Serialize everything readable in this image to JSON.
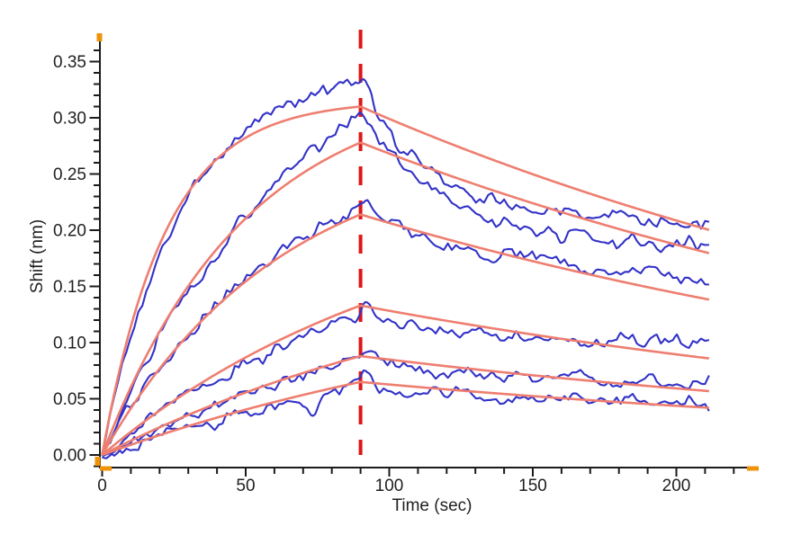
{
  "chart_data": {
    "type": "line",
    "title": "",
    "xlabel": "Time (sec)",
    "ylabel": "Shift (nm)",
    "xlim": [
      -1,
      226
    ],
    "ylim": [
      -0.013,
      0.372
    ],
    "x_ticks": [
      0,
      50,
      100,
      150,
      200
    ],
    "x_minor_step": 10,
    "x_minor_max": 220,
    "y_ticks": [
      0.0,
      0.05,
      0.1,
      0.15,
      0.2,
      0.25,
      0.3,
      0.35
    ],
    "y_minor_step": 0.01,
    "y_minor_min": -0.01,
    "y_minor_max": 0.36,
    "grid": false,
    "legend": false,
    "association_end_sec": 90,
    "run_end_sec": 212,
    "marker_line": {
      "x": 90,
      "style": "dashed",
      "color": "#e01616"
    },
    "colors": {
      "data": "#3232c8",
      "fit": "#ee7e70",
      "axis": "#1b1b1b",
      "axis_end_marks": "#ef9309"
    },
    "series": [
      {
        "name": "trace-1-data",
        "role": "measured",
        "color": "#3232c8",
        "peak_nm": 0.33,
        "end_nm": 0.208,
        "k_obs": 0.038,
        "diss_fast_k": 0.04,
        "spike_nm": 0.015,
        "noise_nm": 0.0055,
        "seed": 12,
        "sample_t": [
          0,
          15,
          30,
          45,
          60,
          75,
          90,
          120,
          150,
          180,
          210
        ],
        "sample_y": [
          0,
          0.148,
          0.232,
          0.28,
          0.306,
          0.322,
          0.33,
          0.243,
          0.217,
          0.21,
          0.208
        ]
      },
      {
        "name": "trace-1-fit",
        "role": "fit",
        "color": "#ee7e70",
        "peak_nm": 0.31,
        "end_nm": 0.2,
        "k_obs": 0.045,
        "k_diss": 0.0036,
        "sample_t": [
          0,
          15,
          30,
          45,
          60,
          75,
          90,
          120,
          150,
          180,
          210
        ],
        "sample_y": [
          0,
          0.155,
          0.234,
          0.274,
          0.294,
          0.305,
          0.31,
          0.278,
          0.25,
          0.224,
          0.201
        ]
      },
      {
        "name": "trace-2-data",
        "role": "measured",
        "color": "#3232c8",
        "peak_nm": 0.301,
        "end_nm": 0.186,
        "k_obs": 0.015,
        "diss_fast_k": 0.035,
        "spike_nm": 0.01,
        "noise_nm": 0.0055,
        "seed": 9,
        "sample_t": [
          0,
          15,
          30,
          45,
          60,
          75,
          90,
          120,
          150,
          180,
          210
        ],
        "sample_y": [
          0,
          0.081,
          0.146,
          0.198,
          0.24,
          0.273,
          0.301,
          0.225,
          0.198,
          0.189,
          0.186
        ]
      },
      {
        "name": "trace-2-fit",
        "role": "fit",
        "color": "#ee7e70",
        "peak_nm": 0.278,
        "end_nm": 0.18,
        "k_obs": 0.02,
        "k_diss": 0.0036,
        "sample_t": [
          0,
          15,
          30,
          45,
          60,
          75,
          90,
          120,
          150,
          180,
          210
        ],
        "sample_y": [
          0,
          0.086,
          0.15,
          0.198,
          0.233,
          0.259,
          0.278,
          0.25,
          0.224,
          0.201,
          0.181
        ]
      },
      {
        "name": "trace-3-data",
        "role": "measured",
        "color": "#3232c8",
        "peak_nm": 0.218,
        "end_nm": 0.157,
        "k_obs": 0.016,
        "diss_fast_k": 0.02,
        "spike_nm": 0.011,
        "noise_nm": 0.0055,
        "seed": 3,
        "sample_t": [
          0,
          15,
          30,
          45,
          60,
          75,
          90,
          120,
          150,
          180,
          210
        ],
        "sample_y": [
          0,
          0.061,
          0.109,
          0.147,
          0.176,
          0.2,
          0.218,
          0.188,
          0.171,
          0.162,
          0.157
        ]
      },
      {
        "name": "trace-3-fit",
        "role": "fit",
        "color": "#ee7e70",
        "peak_nm": 0.214,
        "end_nm": 0.138,
        "k_obs": 0.016,
        "k_diss": 0.0036,
        "sample_t": [
          0,
          15,
          30,
          45,
          60,
          75,
          90,
          120,
          150,
          180,
          210
        ],
        "sample_y": [
          0,
          0.06,
          0.107,
          0.144,
          0.173,
          0.196,
          0.214,
          0.192,
          0.172,
          0.155,
          0.139
        ]
      },
      {
        "name": "trace-4-data",
        "role": "measured",
        "color": "#3232c8",
        "peak_nm": 0.126,
        "end_nm": 0.099,
        "k_obs": 0.009,
        "diss_fast_k": 0.02,
        "spike_nm": 0.013,
        "noise_nm": 0.0052,
        "seed": 14,
        "sample_t": [
          0,
          15,
          30,
          45,
          60,
          75,
          90,
          120,
          150,
          180,
          210
        ],
        "sample_y": [
          0,
          0.029,
          0.054,
          0.076,
          0.095,
          0.111,
          0.126,
          0.113,
          0.105,
          0.101,
          0.099
        ]
      },
      {
        "name": "trace-4-fit",
        "role": "fit",
        "color": "#ee7e70",
        "peak_nm": 0.133,
        "end_nm": 0.086,
        "k_obs": 0.009,
        "k_diss": 0.0036,
        "sample_t": [
          0,
          15,
          30,
          45,
          60,
          75,
          90,
          120,
          150,
          180,
          210
        ],
        "sample_y": [
          0,
          0.03,
          0.057,
          0.08,
          0.1,
          0.118,
          0.133,
          0.119,
          0.107,
          0.096,
          0.086
        ]
      },
      {
        "name": "trace-5-data",
        "role": "measured",
        "color": "#3232c8",
        "peak_nm": 0.086,
        "end_nm": 0.065,
        "k_obs": 0.007,
        "diss_fast_k": 0.02,
        "spike_nm": 0.009,
        "noise_nm": 0.0052,
        "seed": 21,
        "sample_t": [
          0,
          15,
          30,
          45,
          60,
          75,
          90,
          120,
          150,
          180,
          210
        ],
        "sample_y": [
          0,
          0.018,
          0.035,
          0.05,
          0.063,
          0.075,
          0.086,
          0.076,
          0.07,
          0.067,
          0.065
        ]
      },
      {
        "name": "trace-5-fit",
        "role": "fit",
        "color": "#ee7e70",
        "peak_nm": 0.088,
        "end_nm": 0.057,
        "k_obs": 0.007,
        "k_diss": 0.0036,
        "sample_t": [
          0,
          15,
          30,
          45,
          60,
          75,
          90,
          120,
          150,
          180,
          210
        ],
        "sample_y": [
          0,
          0.019,
          0.036,
          0.051,
          0.065,
          0.077,
          0.088,
          0.079,
          0.071,
          0.064,
          0.057
        ]
      },
      {
        "name": "trace-6-data",
        "role": "measured",
        "color": "#3232c8",
        "peak_nm": 0.063,
        "end_nm": 0.046,
        "k_obs": 0.006,
        "diss_fast_k": 0.02,
        "spike_nm": 0.013,
        "noise_nm": 0.0052,
        "seed": 8,
        "dip_t": 74,
        "dip_nm": 0.015,
        "sample_t": [
          0,
          15,
          30,
          45,
          60,
          75,
          90,
          120,
          150,
          180,
          210
        ],
        "sample_y": [
          0,
          0.013,
          0.025,
          0.036,
          0.046,
          0.055,
          0.063,
          0.055,
          0.05,
          0.048,
          0.046
        ]
      },
      {
        "name": "trace-6-fit",
        "role": "fit",
        "color": "#ee7e70",
        "peak_nm": 0.065,
        "end_nm": 0.042,
        "k_obs": 0.006,
        "k_diss": 0.0036,
        "sample_t": [
          0,
          15,
          30,
          45,
          60,
          75,
          90,
          120,
          150,
          180,
          210
        ],
        "sample_y": [
          0,
          0.013,
          0.026,
          0.037,
          0.047,
          0.056,
          0.065,
          0.058,
          0.052,
          0.047,
          0.042
        ]
      }
    ]
  }
}
